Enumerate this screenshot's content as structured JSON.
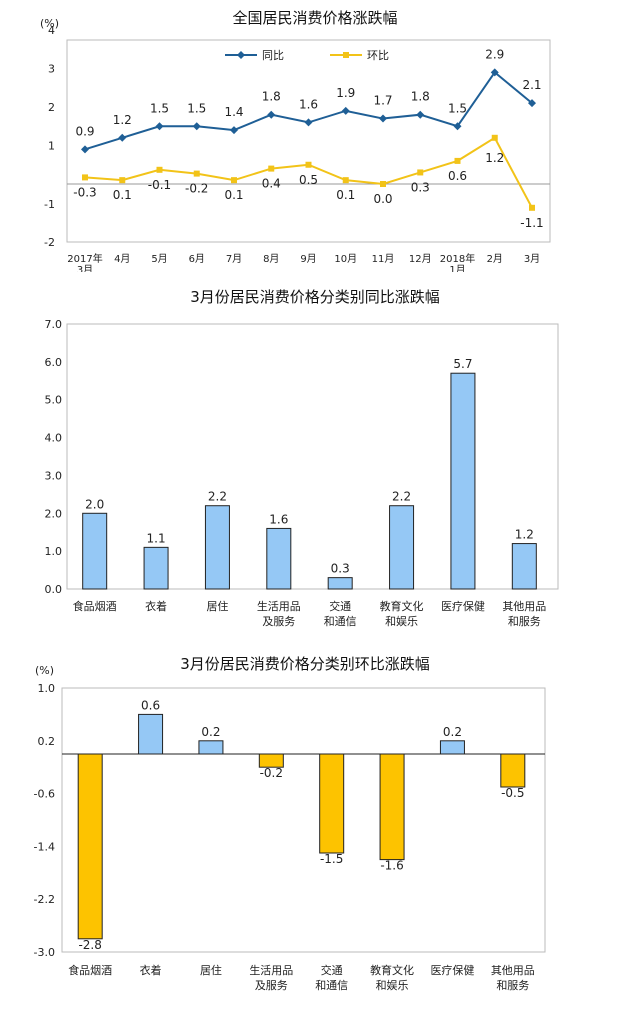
{
  "chart_data": [
    {
      "type": "line",
      "title": "全国居民消费价格涨跌幅",
      "unit": "(%)",
      "categories": [
        "2017年\n3月",
        "4月",
        "5月",
        "6月",
        "7月",
        "8月",
        "9月",
        "10月",
        "11月",
        "12月",
        "2018年\n1月",
        "2月",
        "3月"
      ],
      "series": [
        {
          "name": "同比",
          "color": "#1f5f96",
          "values": [
            0.9,
            1.2,
            1.5,
            1.5,
            1.4,
            1.8,
            1.6,
            1.9,
            1.7,
            1.8,
            1.5,
            2.9,
            2.1
          ]
        },
        {
          "name": "环比",
          "color": "#f2c318",
          "values": [
            -0.3,
            0.1,
            -0.1,
            -0.2,
            0.1,
            0.4,
            0.5,
            0.1,
            0.0,
            0.3,
            0.6,
            1.2,
            -1.1
          ]
        }
      ],
      "yticks": [
        4,
        3,
        2,
        1,
        -1,
        -2
      ],
      "legend_position": "top-center"
    },
    {
      "type": "bar",
      "title": "3月份居民消费价格分类别同比涨跌幅",
      "categories": [
        "食品烟酒",
        "衣着",
        "居住",
        "生活用品\n及服务",
        "交通\n和通信",
        "教育文化\n和娱乐",
        "医疗保健",
        "其他用品\n和服务"
      ],
      "values": [
        2.0,
        1.1,
        2.2,
        1.6,
        0.3,
        2.2,
        5.7,
        1.2
      ],
      "value_labels": [
        "2.0",
        "1.1",
        "2.2",
        "1.6",
        "0.3",
        "2.2",
        "5.7",
        "1.2"
      ],
      "ylim": [
        0,
        7
      ],
      "yticks": [
        "7.0",
        "6.0",
        "5.0",
        "4.0",
        "3.0",
        "2.0",
        "1.0",
        "0.0"
      ],
      "color": "#95c8f5"
    },
    {
      "type": "bar",
      "title": "3月份居民消费价格分类别环比涨跌幅",
      "unit": "(%)",
      "categories": [
        "食品烟酒",
        "衣着",
        "居住",
        "生活用品\n及服务",
        "交通\n和通信",
        "教育文化\n和娱乐",
        "医疗保健",
        "其他用品\n和服务"
      ],
      "values": [
        -2.8,
        0.6,
        0.2,
        -0.2,
        -1.5,
        -1.6,
        0.2,
        -0.5
      ],
      "value_labels": [
        "-2.8",
        "0.6",
        "0.2",
        "-0.2",
        "-1.5",
        "-1.6",
        "0.2",
        "-0.5"
      ],
      "ylim": [
        -3.0,
        1.0
      ],
      "yticks": [
        "1.0",
        "0.2",
        "-0.6",
        "-1.4",
        "-2.2",
        "-3.0"
      ],
      "pos_color": "#95c8f5",
      "neg_color": "#fdc300"
    }
  ]
}
